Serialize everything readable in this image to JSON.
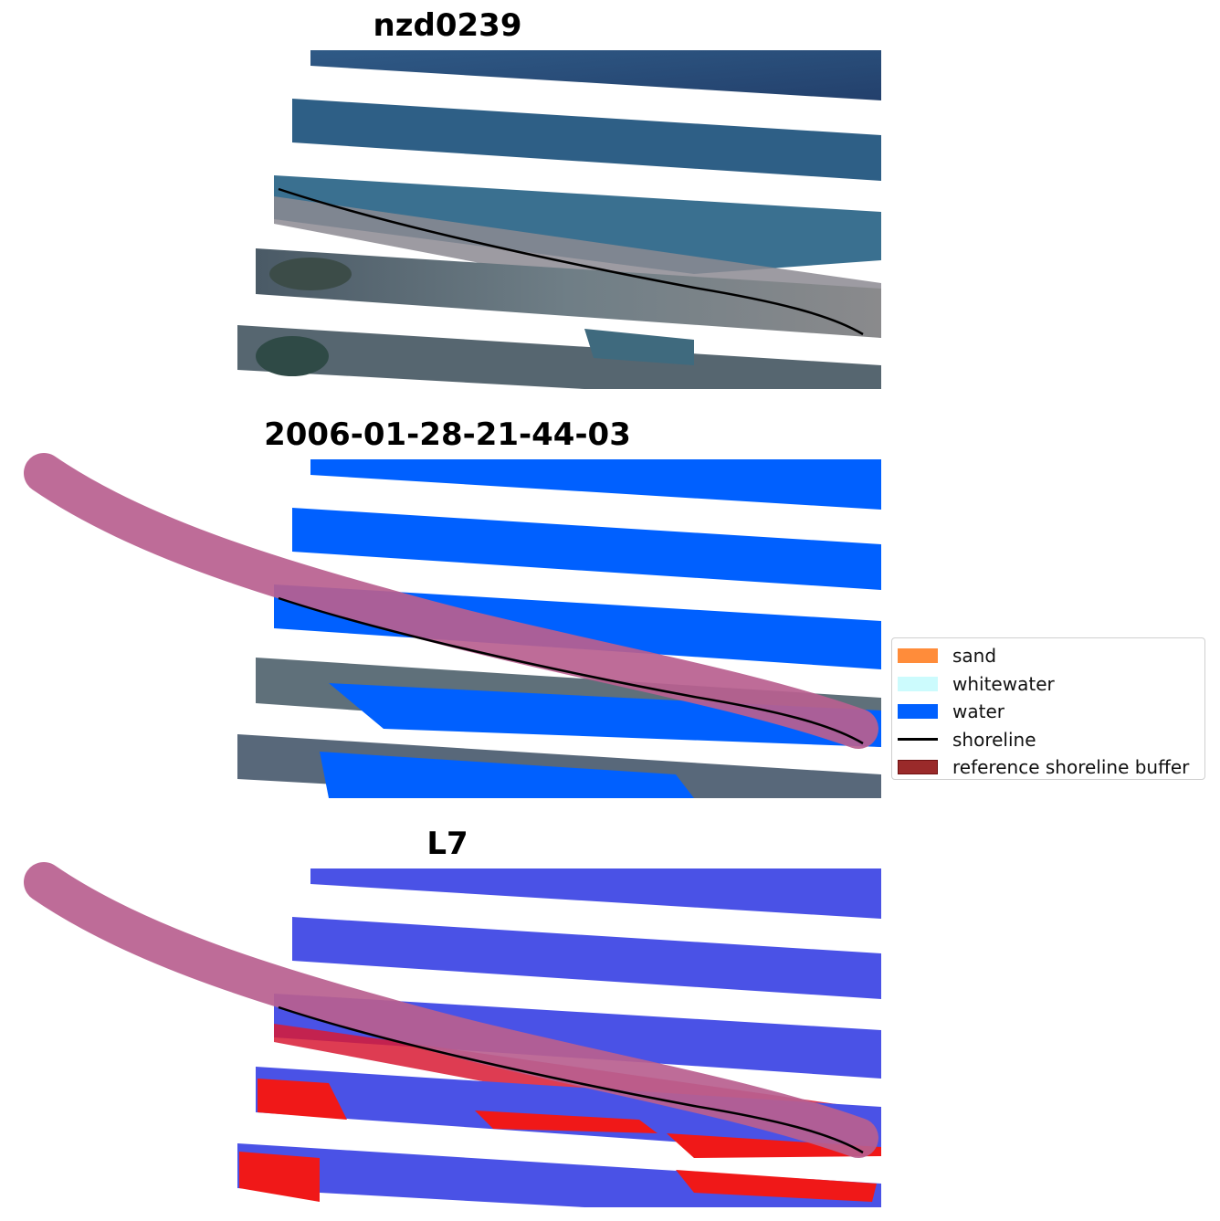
{
  "panels": {
    "rgb": {
      "title": "nzd0239"
    },
    "classified": {
      "title": "2006-01-28-21-44-03"
    },
    "index": {
      "title": "L7"
    }
  },
  "legend": {
    "items": [
      {
        "label": "sand",
        "kind": "patch",
        "color": "#ff8c3a",
        "edge": "#ff8c3a"
      },
      {
        "label": "whitewater",
        "kind": "patch",
        "color": "#ccfbfd",
        "edge": "#ccfbfd"
      },
      {
        "label": "water",
        "kind": "patch",
        "color": "#0060ff",
        "edge": "#0060ff"
      },
      {
        "label": "shoreline",
        "kind": "line",
        "color": "#000000"
      },
      {
        "label": "reference shoreline buffer",
        "kind": "patch",
        "color": "#9a2a2a",
        "edge": "#6e1010"
      }
    ]
  },
  "colors": {
    "ocean_rgb": "#2a4a78",
    "land_rgb": "#5c6c78",
    "water_class": "#0060ff",
    "buffer": "#b8608f",
    "water_index": "#4450e0",
    "land_index": "#f01818",
    "shoreline": "#000000"
  }
}
